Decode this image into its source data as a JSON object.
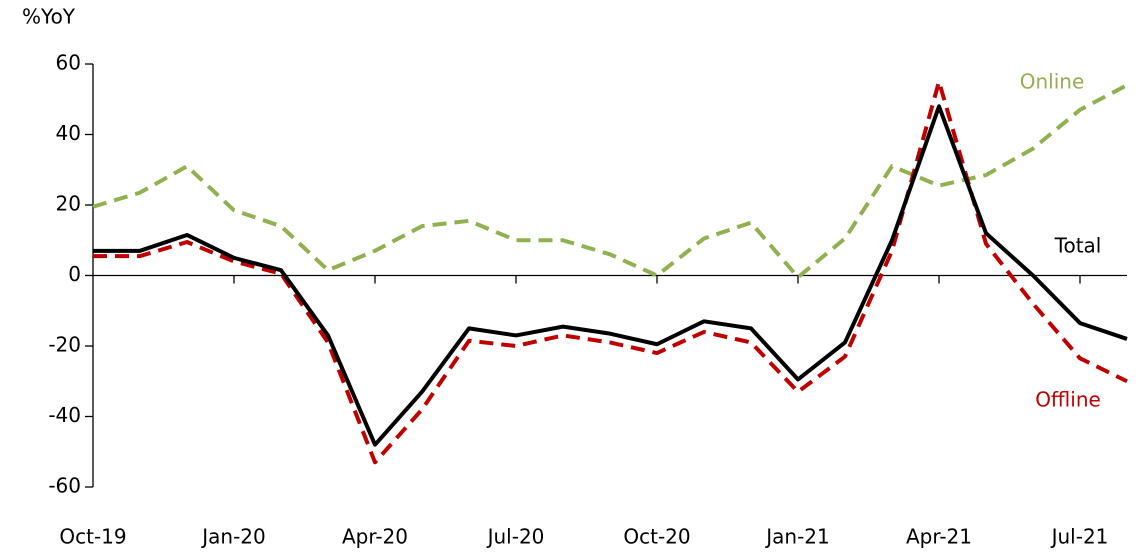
{
  "chart_data": {
    "type": "line",
    "ylabel": "%YoY",
    "categories": [
      "Oct-19",
      null,
      null,
      "Jan-20",
      null,
      null,
      "Apr-20",
      null,
      null,
      "Jul-20",
      null,
      null,
      "Oct-20",
      null,
      null,
      "Jan-21",
      null,
      null,
      "Apr-21",
      null,
      null,
      "Jul-21",
      null
    ],
    "series": [
      {
        "name": "Online",
        "color": "#92b050",
        "dashed": true,
        "values": [
          19.5,
          23.5,
          31,
          18.5,
          14,
          1.5,
          7,
          14,
          15.5,
          10,
          10,
          6,
          0,
          10.5,
          15,
          -0.5,
          10.5,
          31,
          25.5,
          28.5,
          36,
          47,
          54
        ]
      },
      {
        "name": "Offline",
        "color": "#c00000",
        "dashed": true,
        "values": [
          5.5,
          5.5,
          9.5,
          4,
          0.5,
          -19,
          -53,
          -38,
          -18.5,
          -20,
          -17,
          -19,
          -22,
          -16,
          -19,
          -33,
          -23,
          7,
          55,
          9,
          -8,
          -23.5,
          -30
        ]
      },
      {
        "name": "Total",
        "color": "#000000",
        "dashed": false,
        "values": [
          7,
          7,
          11.5,
          5,
          1.5,
          -17,
          -48,
          -33,
          -15,
          -17,
          -14.5,
          -16.5,
          -19.5,
          -13,
          -15,
          -29.5,
          -19,
          10,
          48,
          12,
          0,
          -13.5,
          -18
        ]
      }
    ],
    "ylim": [
      -60,
      60
    ],
    "yticks": [
      -60,
      -40,
      -20,
      0,
      20,
      40,
      60
    ]
  }
}
